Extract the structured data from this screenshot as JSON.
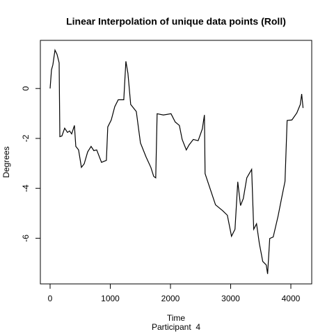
{
  "chart_data": {
    "type": "line",
    "title": "Linear Interpolation of unique data points (Roll)",
    "xlabel": "Time",
    "subtitle": "Participant  4",
    "ylabel": "Degrees",
    "xlim": [
      -162,
      4347
    ],
    "ylim": [
      -7.83,
      1.93
    ],
    "xticks": [
      0,
      1000,
      2000,
      3000,
      4000
    ],
    "yticks": [
      0,
      -2,
      -4,
      -6
    ],
    "grid": false,
    "series": [
      {
        "name": "Roll",
        "color": "#000000",
        "x": [
          0,
          23,
          46,
          81,
          115,
          150,
          162,
          196,
          242,
          289,
          323,
          358,
          404,
          427,
          473,
          520,
          566,
          624,
          681,
          727,
          774,
          854,
          935,
          958,
          1016,
          1074,
          1132,
          1224,
          1259,
          1293,
          1339,
          1432,
          1501,
          1594,
          1674,
          1721,
          1755,
          1778,
          1882,
          2009,
          2078,
          2148,
          2194,
          2263,
          2309,
          2379,
          2460,
          2529,
          2564,
          2575,
          2633,
          2691,
          2748,
          2818,
          2864,
          2945,
          3014,
          3072,
          3118,
          3164,
          3210,
          3268,
          3349,
          3383,
          3430,
          3476,
          3533,
          3591,
          3614,
          3649,
          3707,
          3788,
          3845,
          3903,
          3938,
          4018,
          4099,
          4157,
          4180,
          4203
        ],
        "values": [
          0,
          0.75,
          0.95,
          1.54,
          1.37,
          1.03,
          -1.93,
          -1.9,
          -1.59,
          -1.76,
          -1.7,
          -1.82,
          -1.48,
          -2.32,
          -2.46,
          -3.16,
          -3.02,
          -2.54,
          -2.32,
          -2.49,
          -2.46,
          -2.96,
          -2.88,
          -1.54,
          -1.26,
          -0.73,
          -0.45,
          -0.45,
          1.09,
          0.61,
          -0.64,
          -0.92,
          -2.18,
          -2.74,
          -3.16,
          -3.52,
          -3.58,
          -1.01,
          -1.06,
          -1.01,
          -1.34,
          -1.48,
          -2.04,
          -2.46,
          -2.26,
          -2.04,
          -2.09,
          -1.62,
          -1.06,
          -3.41,
          -3.83,
          -4.25,
          -4.66,
          -4.8,
          -4.89,
          -5.08,
          -5.92,
          -5.64,
          -3.74,
          -4.69,
          -4.41,
          -3.58,
          -3.24,
          -5.64,
          -5.42,
          -6.2,
          -6.93,
          -7.07,
          -7.43,
          -6.01,
          -5.95,
          -5.11,
          -4.41,
          -3.72,
          -1.28,
          -1.26,
          -0.98,
          -0.64,
          -0.22,
          -0.78
        ]
      }
    ]
  }
}
